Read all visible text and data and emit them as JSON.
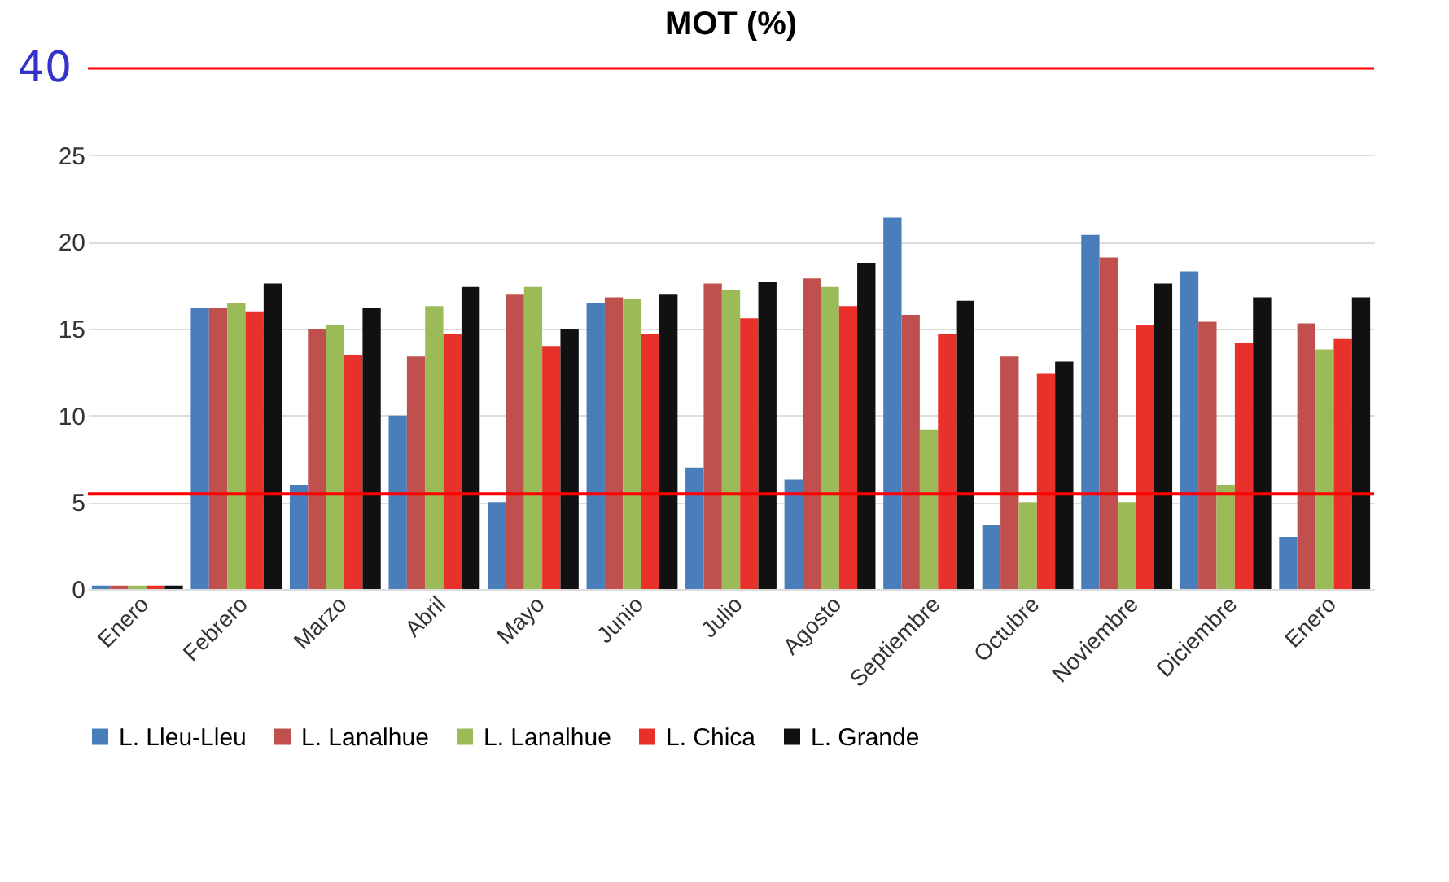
{
  "chart_data": {
    "type": "bar",
    "title": "MOT (%)",
    "categories": [
      "Enero",
      "Febrero",
      "Marzo",
      "Abril",
      "Mayo",
      "Junio",
      "Julio",
      "Agosto",
      "Septiembre",
      "Octubre",
      "Noviembre",
      "Diciembre",
      "Enero"
    ],
    "series": [
      {
        "name": "L. Lleu-Lleu",
        "color": "#4a7ebb",
        "values": [
          0.2,
          16.2,
          6,
          10,
          5,
          16.5,
          7,
          6.3,
          21.4,
          3.7,
          20.4,
          18.3,
          3
        ]
      },
      {
        "name": "L. Lanalhue",
        "color": "#c0504d",
        "values": [
          0.2,
          16.2,
          15,
          13.4,
          17,
          16.8,
          17.6,
          17.9,
          15.8,
          13.4,
          19.1,
          15.4,
          15.3
        ]
      },
      {
        "name": "L. Lanalhue",
        "color": "#9bbb59",
        "values": [
          0.2,
          16.5,
          15.2,
          16.3,
          17.4,
          16.7,
          17.2,
          17.4,
          9.2,
          5,
          5,
          6,
          13.8
        ]
      },
      {
        "name": "L. Chica",
        "color": "#e8312a",
        "values": [
          0.2,
          16,
          13.5,
          14.7,
          14,
          14.7,
          15.6,
          16.3,
          14.7,
          12.4,
          15.2,
          14.2,
          14.4
        ]
      },
      {
        "name": "L. Grande",
        "color": "#111111",
        "values": [
          0.2,
          17.6,
          16.2,
          17.4,
          15,
          17,
          17.7,
          18.8,
          16.6,
          13.1,
          17.6,
          16.8,
          16.8
        ]
      }
    ],
    "annotations": [
      "40"
    ],
    "ylim": [
      0,
      30
    ],
    "yticks": [
      0,
      5,
      10,
      15,
      20,
      25
    ],
    "grid": "y",
    "legend": "bottom",
    "ref_lines": [
      {
        "axis": "y",
        "value": 30,
        "color": "#ff0000"
      },
      {
        "axis": "y",
        "value": 5.5,
        "color": "#ff0000"
      }
    ]
  }
}
